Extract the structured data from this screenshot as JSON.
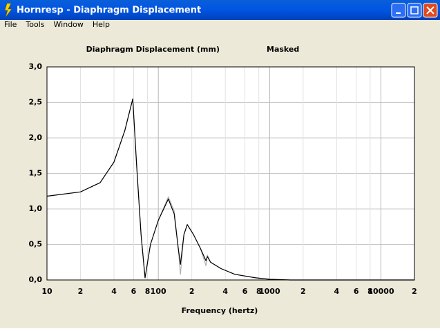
{
  "window": {
    "title": "Hornresp - Diaphragm Displacement",
    "menu": [
      "File",
      "Tools",
      "Window",
      "Help"
    ]
  },
  "chart_data": {
    "type": "line",
    "title": "Diaphragm Displacement (mm)",
    "annotation": "Masked",
    "x_label": "Frequency (hertz)",
    "x_scale": "log",
    "grid": true,
    "x": [
      10,
      20,
      30,
      40,
      50,
      59,
      64,
      70,
      76,
      85,
      100,
      123,
      139,
      151,
      158,
      170,
      182,
      207,
      238,
      268,
      276,
      295,
      366,
      487,
      750,
      1000,
      1530,
      20000
    ],
    "series": [
      {
        "color": "#b0b0b0",
        "values": [
          1.18,
          1.24,
          1.37,
          1.66,
          2.1,
          2.55,
          1.6,
          0.64,
          0.03,
          0.5,
          0.84,
          1.17,
          0.97,
          0.45,
          0.08,
          0.64,
          0.78,
          0.64,
          0.45,
          0.2,
          0.35,
          0.25,
          0.16,
          0.08,
          0.03,
          0.01,
          0,
          0
        ]
      },
      {
        "color": "#000000",
        "values": [
          1.18,
          1.24,
          1.37,
          1.66,
          2.1,
          2.55,
          1.6,
          0.64,
          0.03,
          0.5,
          0.84,
          1.14,
          0.93,
          0.45,
          0.22,
          0.64,
          0.78,
          0.64,
          0.45,
          0.27,
          0.33,
          0.25,
          0.16,
          0.08,
          0.03,
          0.01,
          0,
          0
        ]
      }
    ],
    "xlim": [
      10,
      20000
    ],
    "xticks": [
      10,
      {
        "value": 20,
        "label": "2"
      },
      {
        "value": 40,
        "label": "4"
      },
      {
        "value": 60,
        "label": "6"
      },
      {
        "value": 80,
        "label": "8"
      },
      100,
      {
        "value": 200,
        "label": "2"
      },
      {
        "value": 400,
        "label": "4"
      },
      {
        "value": 600,
        "label": "6"
      },
      {
        "value": 800,
        "label": "8"
      },
      1000,
      {
        "value": 2000,
        "label": "2"
      },
      {
        "value": 4000,
        "label": "4"
      },
      {
        "value": 6000,
        "label": "6"
      },
      {
        "value": 8000,
        "label": "8"
      },
      10000,
      {
        "value": 20000,
        "label": "2"
      }
    ],
    "ylim": [
      0,
      3
    ],
    "yticks": [
      {
        "value": 0,
        "label": "0,0"
      },
      {
        "value": 0.5,
        "label": "0,5"
      },
      {
        "value": 1,
        "label": "1,0"
      },
      {
        "value": 1.5,
        "label": "1,5"
      },
      {
        "value": 2,
        "label": "2,0"
      },
      {
        "value": 2.5,
        "label": "2,5"
      },
      {
        "value": 3,
        "label": "3,0"
      }
    ]
  }
}
